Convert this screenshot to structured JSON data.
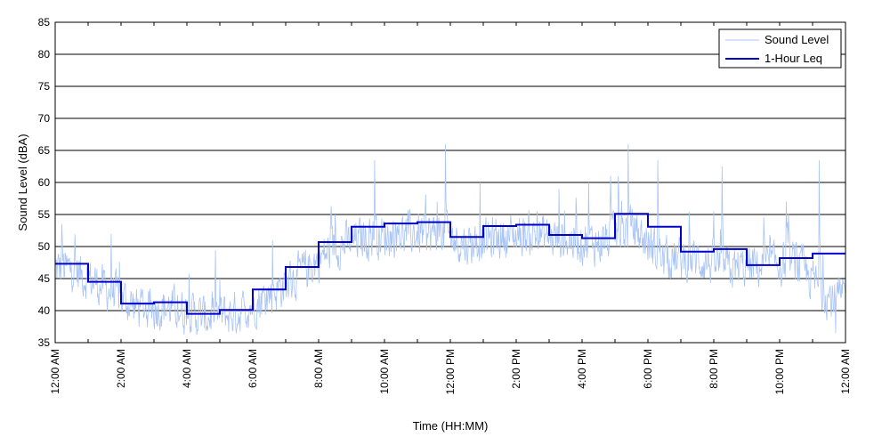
{
  "chart_data": {
    "type": "line",
    "title": "",
    "xlabel": "Time (HH:MM)",
    "ylabel": "Sound Level (dBA)",
    "xlim": [
      0,
      24
    ],
    "ylim": [
      35,
      85
    ],
    "y_ticks": [
      35,
      40,
      45,
      50,
      55,
      60,
      65,
      70,
      75,
      80,
      85
    ],
    "x_ticks": [
      0,
      2,
      4,
      6,
      8,
      10,
      12,
      14,
      16,
      18,
      20,
      22,
      24
    ],
    "x_tick_labels": [
      "12:00 AM",
      "2:00 AM",
      "4:00 AM",
      "6:00 AM",
      "8:00 AM",
      "10:00 AM",
      "12:00 PM",
      "2:00 PM",
      "4:00 PM",
      "6:00 PM",
      "8:00 PM",
      "10:00 PM",
      "12:00 AM"
    ],
    "grid": "horizontal",
    "legend_position": "top-right",
    "colors": {
      "sound_level": "#a9c4f5",
      "leq": "#0000cc"
    },
    "series": [
      {
        "name": "Sound Level",
        "style": "thin-light-blue",
        "hourly_mean": [
          46.5,
          43.5,
          40.5,
          40.5,
          39.0,
          39.5,
          42.5,
          46.0,
          50.0,
          51.5,
          52.0,
          52.0,
          50.5,
          51.5,
          52.0,
          51.0,
          50.5,
          53.0,
          48.0,
          48.0,
          46.5,
          47.0,
          47.5,
          42.0
        ],
        "peaks": [
          [
            0.2,
            53.5
          ],
          [
            1.7,
            52
          ],
          [
            5.0,
            45
          ],
          [
            6.6,
            51
          ],
          [
            8.5,
            55
          ],
          [
            9.7,
            63.5
          ],
          [
            11.6,
            57
          ],
          [
            11.85,
            66
          ],
          [
            12.9,
            60
          ],
          [
            15.3,
            59
          ],
          [
            16.2,
            60
          ],
          [
            17.1,
            61
          ],
          [
            17.4,
            66
          ],
          [
            18.3,
            63.5
          ],
          [
            20.25,
            62.5
          ],
          [
            22.2,
            57
          ],
          [
            23.2,
            63.5
          ],
          [
            23.7,
            36.5
          ]
        ]
      },
      {
        "name": "1-Hour Leq",
        "style": "step",
        "hours": [
          0,
          1,
          2,
          3,
          4,
          5,
          6,
          7,
          8,
          9,
          10,
          11,
          12,
          13,
          14,
          15,
          16,
          17,
          18,
          19,
          20,
          21,
          22,
          23
        ],
        "values": [
          47.3,
          44.5,
          41.1,
          41.3,
          39.5,
          40.1,
          43.3,
          46.8,
          50.7,
          53.1,
          53.6,
          53.8,
          51.5,
          53.2,
          53.4,
          51.8,
          51.3,
          55.1,
          53.1,
          49.2,
          49.6,
          47.1,
          48.2,
          48.9
        ]
      }
    ]
  }
}
